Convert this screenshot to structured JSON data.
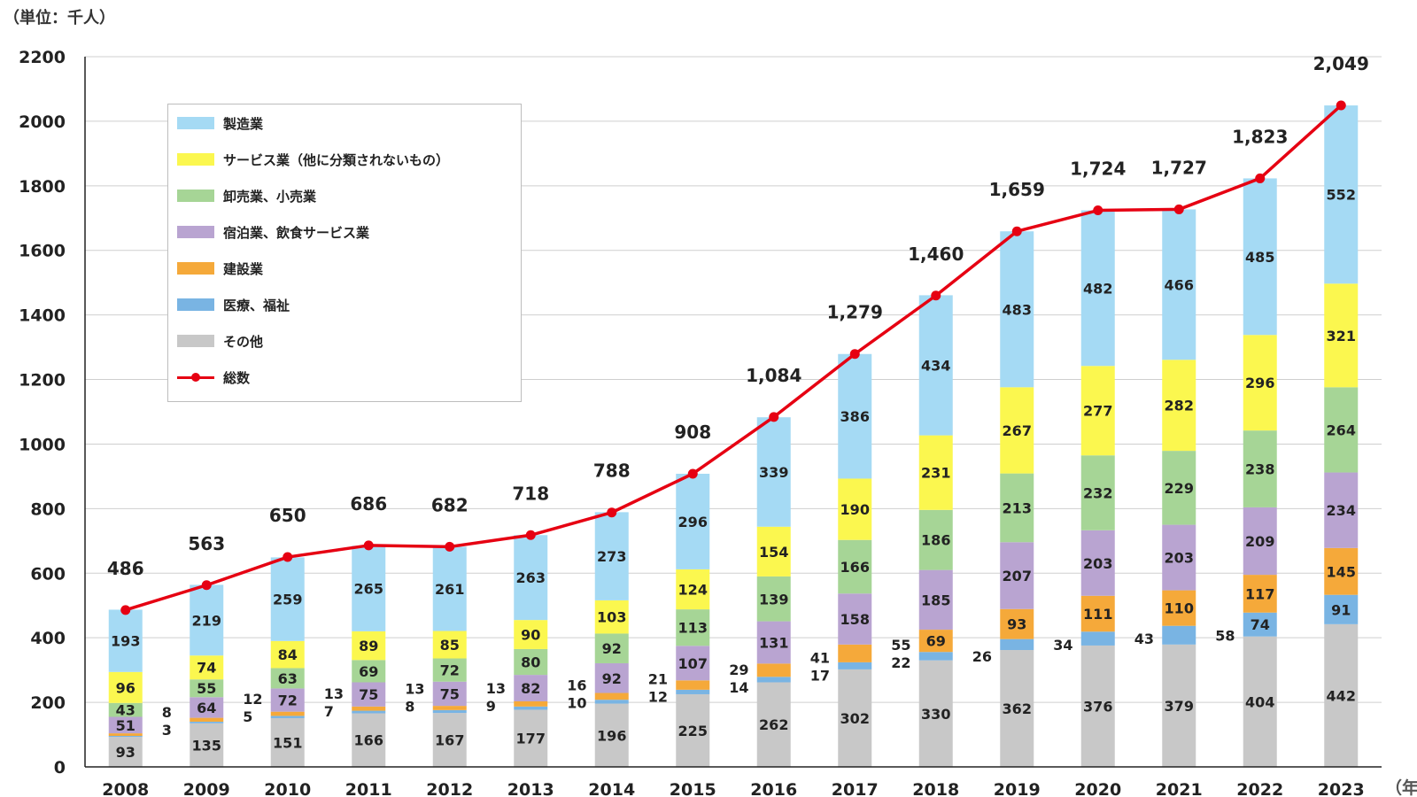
{
  "chart_data": {
    "type": "bar",
    "stacked": true,
    "unit_label": "（単位：千人）",
    "x_unit_label": "（年）",
    "categories": [
      "2008",
      "2009",
      "2010",
      "2011",
      "2012",
      "2013",
      "2014",
      "2015",
      "2016",
      "2017",
      "2018",
      "2019",
      "2020",
      "2021",
      "2022",
      "2023"
    ],
    "ylim": [
      0,
      2200
    ],
    "yticks": [
      "0",
      "200",
      "400",
      "600",
      "800",
      "1000",
      "1200",
      "1400",
      "1600",
      "1800",
      "2000",
      "2200"
    ],
    "grid": true,
    "legend_position": "top-left",
    "series": [
      {
        "name": "その他",
        "color": "#c8c8c8",
        "values": [
          93,
          135,
          151,
          166,
          167,
          177,
          196,
          225,
          262,
          302,
          330,
          362,
          376,
          379,
          404,
          442
        ]
      },
      {
        "name": "医療、福祉",
        "color": "#79b4e3",
        "values": [
          3,
          5,
          7,
          8,
          9,
          10,
          12,
          14,
          17,
          22,
          26,
          34,
          43,
          58,
          74,
          91
        ]
      },
      {
        "name": "建設業",
        "color": "#f5a93a",
        "values": [
          8,
          12,
          13,
          13,
          13,
          16,
          21,
          29,
          41,
          55,
          69,
          93,
          111,
          110,
          117,
          145
        ]
      },
      {
        "name": "宿泊業、飲食サービス業",
        "color": "#b9a4d1",
        "values": [
          51,
          64,
          72,
          75,
          75,
          82,
          92,
          107,
          131,
          158,
          185,
          207,
          203,
          203,
          209,
          234
        ]
      },
      {
        "name": "卸売業、小売業",
        "color": "#a6d596",
        "values": [
          43,
          55,
          63,
          69,
          72,
          80,
          92,
          113,
          139,
          166,
          186,
          213,
          232,
          229,
          238,
          264
        ]
      },
      {
        "name": "サービス業（他に分類されないもの）",
        "color": "#fbf74f",
        "values": [
          96,
          74,
          84,
          89,
          85,
          90,
          103,
          124,
          154,
          190,
          231,
          267,
          277,
          282,
          296,
          321
        ]
      },
      {
        "name": "製造業",
        "color": "#a5daf4",
        "values": [
          193,
          219,
          259,
          265,
          261,
          263,
          273,
          296,
          339,
          386,
          434,
          483,
          482,
          466,
          485,
          552
        ]
      }
    ],
    "total": {
      "name": "総数",
      "color": "#e60012",
      "values": [
        486,
        563,
        650,
        686,
        682,
        718,
        788,
        908,
        1084,
        1279,
        1460,
        1659,
        1724,
        1727,
        1823,
        2049
      ],
      "labels": [
        "486",
        "563",
        "650",
        "686",
        "682",
        "718",
        "788",
        "908",
        "1,084",
        "1,279",
        "1,460",
        "1,659",
        "1,724",
        "1,727",
        "1,823",
        "2,049"
      ]
    }
  },
  "legend": {
    "items": [
      {
        "label": "製造業",
        "color": "#a5daf4"
      },
      {
        "label": "サービス業（他に分類されないもの）",
        "color": "#fbf74f"
      },
      {
        "label": "卸売業、小売業",
        "color": "#a6d596"
      },
      {
        "label": "宿泊業、飲食サービス業",
        "color": "#b9a4d1"
      },
      {
        "label": "建設業",
        "color": "#f5a93a"
      },
      {
        "label": "医療、福祉",
        "color": "#79b4e3"
      },
      {
        "label": "その他",
        "color": "#c8c8c8"
      },
      {
        "label": "総数",
        "color": "#e60012"
      }
    ]
  }
}
